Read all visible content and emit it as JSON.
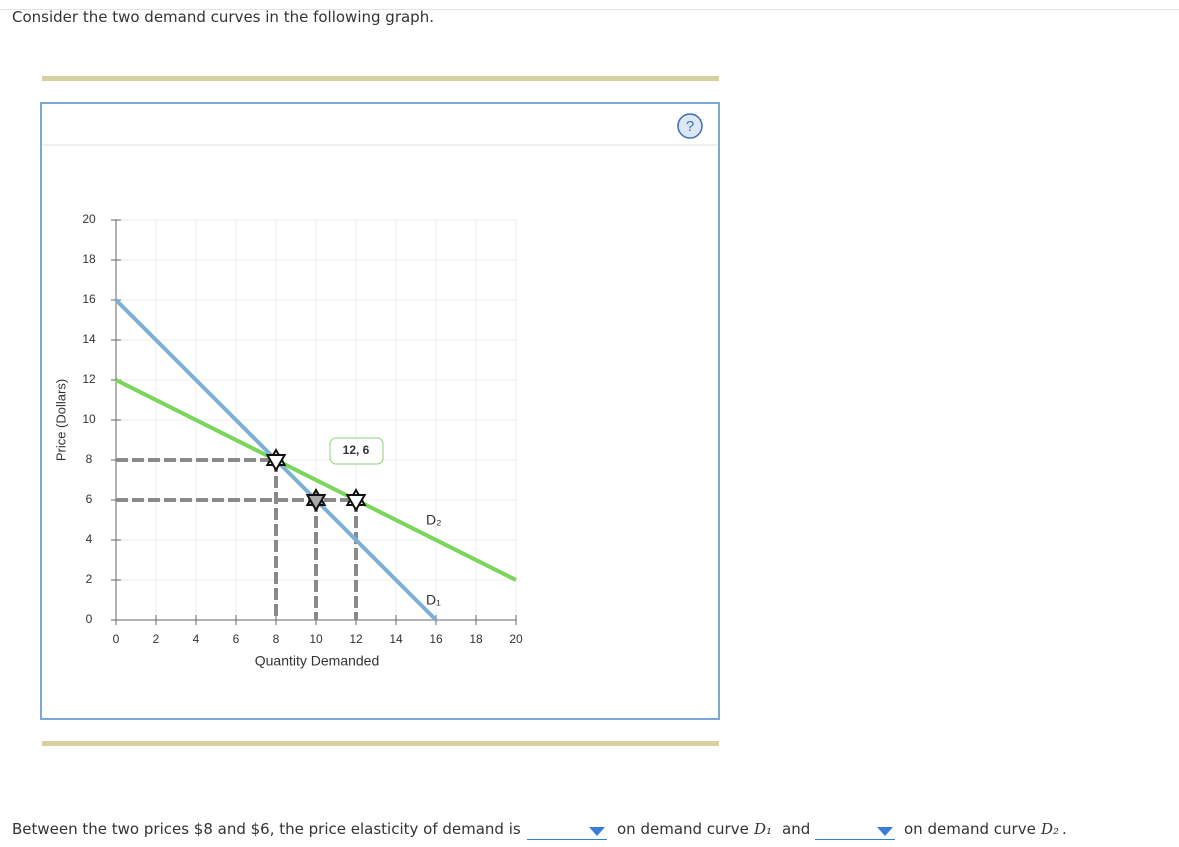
{
  "prompt": "Consider the two demand curves in the following graph.",
  "help": "?",
  "chart_data": {
    "type": "line",
    "xlabel": "Quantity Demanded",
    "ylabel": "Price (Dollars)",
    "xlim": [
      0,
      20
    ],
    "ylim": [
      0,
      20
    ],
    "xticks": [
      0,
      2,
      4,
      6,
      8,
      10,
      12,
      14,
      16,
      18,
      20
    ],
    "yticks": [
      0,
      2,
      4,
      6,
      8,
      10,
      12,
      14,
      16,
      18,
      20
    ],
    "grid": true,
    "series": [
      {
        "name": "D₁",
        "color": "#7eb0d6",
        "x": [
          0,
          16
        ],
        "values": [
          16,
          0
        ]
      },
      {
        "name": "D₂",
        "color": "#78d65a",
        "x": [
          0,
          20
        ],
        "values": [
          12,
          2
        ]
      }
    ],
    "points": [
      {
        "x": 8,
        "y": 8
      },
      {
        "x": 10,
        "y": 6
      },
      {
        "x": 12,
        "y": 6
      }
    ],
    "point_label": "12, 6"
  },
  "question": {
    "part1": "Between the two prices $8 and $6, the price elasticity of demand is",
    "part2": "on demand curve",
    "curve1": "D₁",
    "part3": "and",
    "part4": "on demand curve",
    "curve2": "D₂",
    "end": "."
  }
}
